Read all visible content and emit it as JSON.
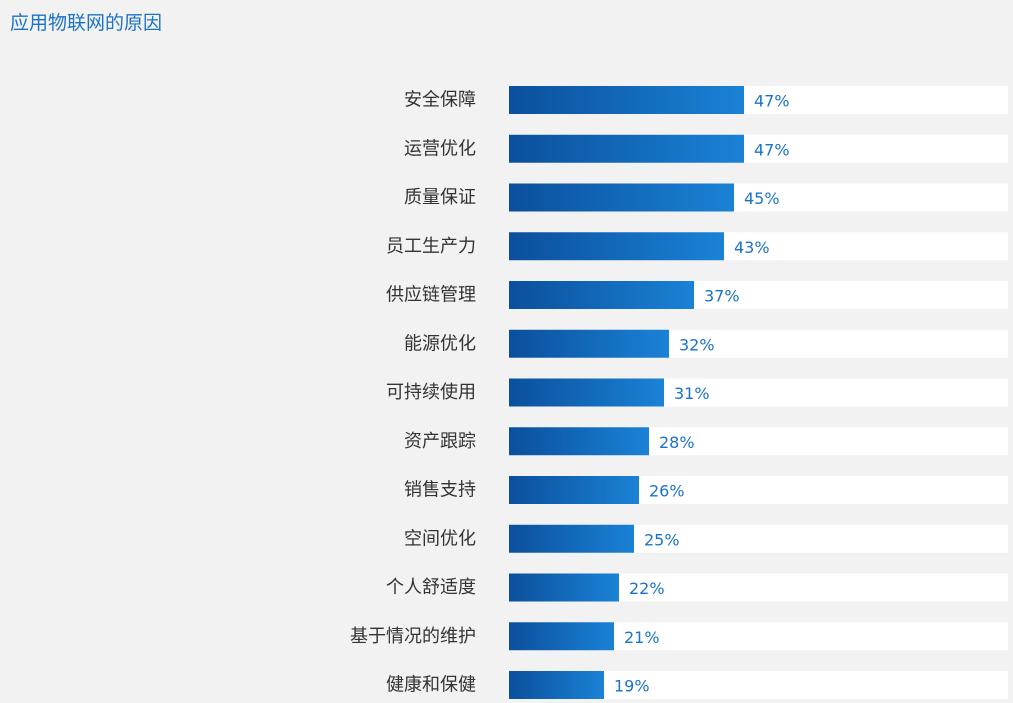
{
  "title": "应用物联网的原因",
  "colors": {
    "title": "#1a73c8",
    "bar_dark": "#0b4f9c",
    "bar_light": "#1a82d6",
    "track": "#ffffff",
    "background": "#f2f2f2",
    "value_text": "#1a73c8",
    "category_text": "#333333"
  },
  "chart_data": {
    "type": "bar",
    "orientation": "horizontal",
    "categories": [
      "安全保障",
      "运营优化",
      "质量保证",
      "员工生产力",
      "供应链管理",
      "能源优化",
      "可持续使用",
      "资产跟踪",
      "销售支持",
      "空间优化",
      "个人舒适度",
      "基于情况的维护",
      "健康和保健"
    ],
    "values": [
      47,
      47,
      45,
      43,
      37,
      32,
      31,
      28,
      26,
      25,
      22,
      21,
      19
    ],
    "value_labels": [
      "47%",
      "47%",
      "45%",
      "43%",
      "37%",
      "32%",
      "31%",
      "28%",
      "26%",
      "25%",
      "22%",
      "21%",
      "19%"
    ],
    "unit": "%",
    "xlim": [
      0,
      100
    ],
    "grid": false,
    "legend": "none"
  }
}
